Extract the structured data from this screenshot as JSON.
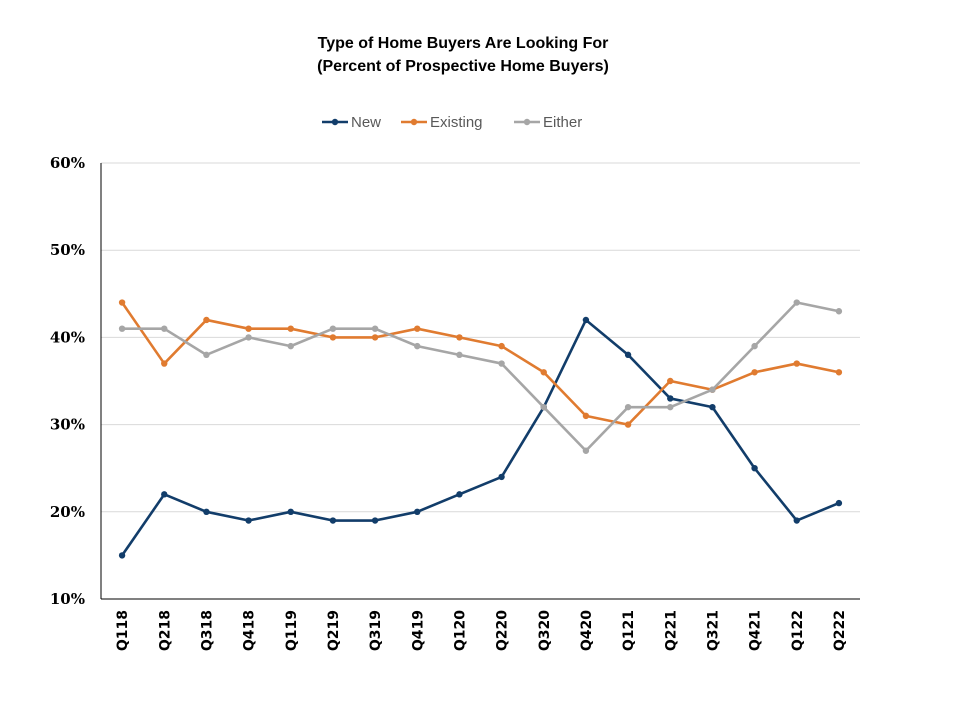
{
  "chart_data": {
    "type": "line",
    "title_line1": "Type of Home Buyers Are Looking For",
    "title_line2": "(Percent of Prospective Home Buyers)",
    "xlabel": "",
    "ylabel": "",
    "ylim": [
      10,
      60
    ],
    "yticks": [
      10,
      20,
      30,
      40,
      50,
      60
    ],
    "ytick_labels": [
      "10%",
      "20%",
      "30%",
      "40%",
      "50%",
      "60%"
    ],
    "grid": true,
    "legend_position": "top-center",
    "categories": [
      "Q118",
      "Q218",
      "Q318",
      "Q418",
      "Q119",
      "Q219",
      "Q319",
      "Q419",
      "Q120",
      "Q220",
      "Q320",
      "Q420",
      "Q121",
      "Q221",
      "Q321",
      "Q421",
      "Q122",
      "Q222"
    ],
    "series": [
      {
        "name": "New",
        "color": "#123d6a",
        "values": [
          15,
          22,
          20,
          19,
          20,
          19,
          19,
          20,
          22,
          24,
          32,
          42,
          38,
          33,
          32,
          25,
          19,
          21
        ]
      },
      {
        "name": "Existing",
        "color": "#e07b30",
        "values": [
          44,
          37,
          42,
          41,
          41,
          40,
          40,
          41,
          40,
          39,
          36,
          31,
          30,
          35,
          34,
          36,
          37,
          36
        ]
      },
      {
        "name": "Either",
        "color": "#a6a6a6",
        "values": [
          41,
          41,
          38,
          40,
          39,
          41,
          41,
          39,
          38,
          37,
          32,
          27,
          32,
          32,
          34,
          39,
          44,
          43
        ]
      }
    ]
  }
}
